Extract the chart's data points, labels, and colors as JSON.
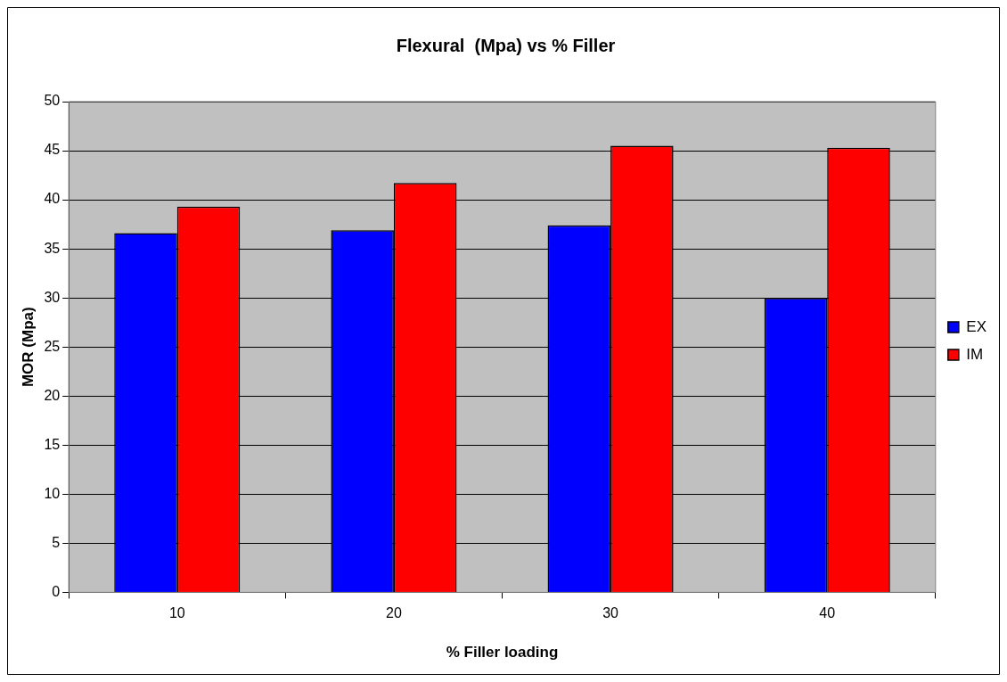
{
  "chart_data": {
    "type": "bar",
    "title": "Flexural  (Mpa) vs % Filler",
    "xlabel": "% Filler loading",
    "ylabel": "MOR (Mpa)",
    "categories": [
      "10",
      "20",
      "30",
      "40"
    ],
    "series": [
      {
        "name": "EX",
        "color": "#0000ff",
        "values": [
          36.6,
          36.9,
          37.4,
          30.0
        ]
      },
      {
        "name": "IM",
        "color": "#ff0000",
        "values": [
          39.3,
          41.7,
          45.5,
          45.3
        ]
      }
    ],
    "ylim": [
      0,
      50
    ],
    "yticks": [
      0,
      5,
      10,
      15,
      20,
      25,
      30,
      35,
      40,
      45,
      50
    ],
    "grid": "y",
    "legend": "right"
  }
}
